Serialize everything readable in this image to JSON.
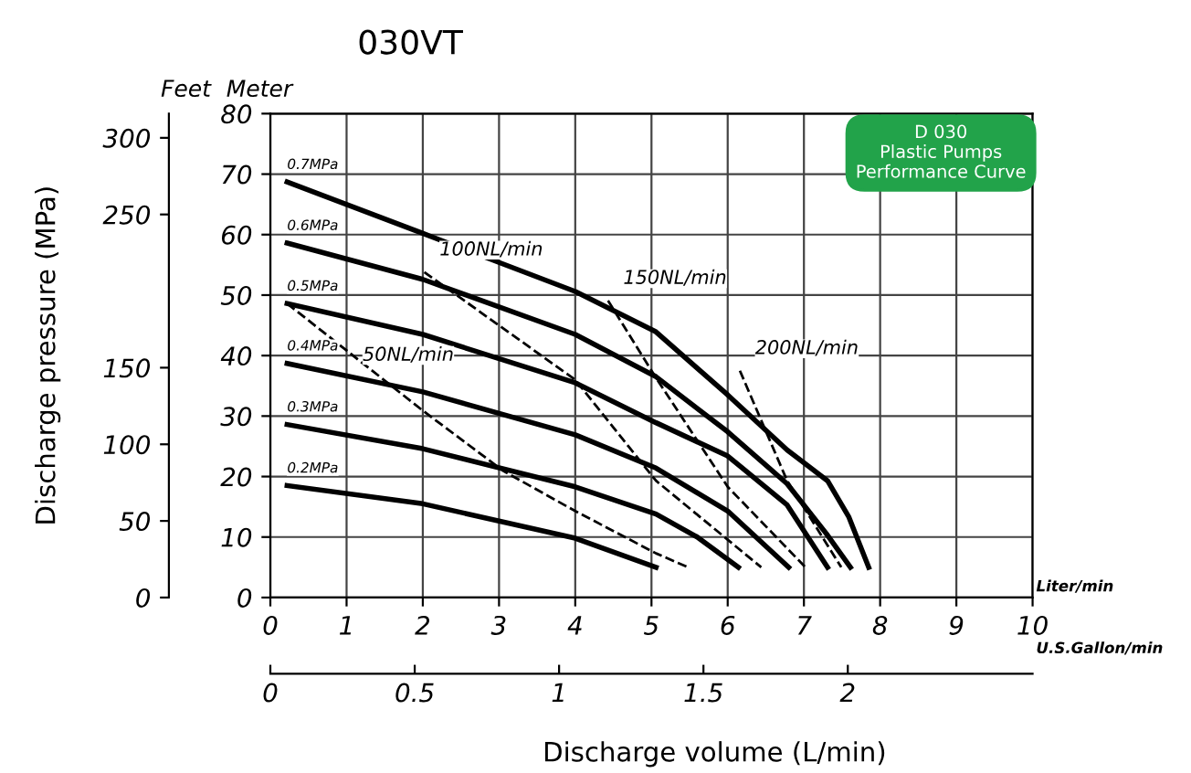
{
  "chart_data": {
    "type": "line",
    "title": "030VT",
    "xlabel": "Discharge volume (L/min)",
    "x2label": "U.S.Gallon/min",
    "annotations": [
      "Meter",
      "Liter/min",
      "D 030\nPlastic Pumps\nPerformance Curve",
      "Feet",
      "Discharge pressure (MPa)"
    ],
    "xlim": [
      0,
      10
    ],
    "xticks": [
      0,
      1,
      2,
      3,
      4,
      5,
      6,
      7,
      8,
      9,
      10
    ],
    "ylim": [
      0,
      80
    ],
    "yticks": [
      0,
      10,
      20,
      30,
      40,
      50,
      60,
      70,
      80
    ],
    "x2lim": [
      0,
      2.64
    ],
    "x2ticks": [
      0,
      0.5,
      1,
      1.5,
      2
    ],
    "y2lim": [
      0,
      315.8
    ],
    "y2ticks": [
      0,
      50,
      100,
      150,
      250,
      300
    ],
    "grid": true,
    "legend": false,
    "marker": "none",
    "series": [
      {
        "name": "0.7MPa",
        "color": "#000000",
        "line_style": "solid",
        "x": [
          0.22,
          2,
          4,
          5.05,
          6,
          6.78,
          7.31,
          7.59,
          7.85
        ],
        "values": [
          68.7,
          60.2,
          50.6,
          44,
          33.5,
          24.4,
          19.3,
          13.3,
          5
        ]
      },
      {
        "name": "0.6MPa",
        "color": "#000000",
        "line_style": "solid",
        "x": [
          0.22,
          2,
          4,
          5.06,
          6,
          6.78,
          7.31,
          7.61
        ],
        "values": [
          58.6,
          52.6,
          43.5,
          36.5,
          27.4,
          18.8,
          10.3,
          5
        ]
      },
      {
        "name": "0.5MPa",
        "color": "#000000",
        "line_style": "solid",
        "x": [
          0.22,
          2,
          4,
          5.06,
          6,
          6.78,
          7.31
        ],
        "values": [
          48.6,
          43.5,
          35.5,
          28.9,
          23.4,
          15.3,
          5
        ]
      },
      {
        "name": "0.4MPa",
        "color": "#000000",
        "line_style": "solid",
        "x": [
          0.22,
          2,
          4,
          5.06,
          6,
          6.8
        ],
        "values": [
          38.7,
          34,
          26.9,
          21.4,
          14.3,
          5
        ]
      },
      {
        "name": "0.3MPa",
        "color": "#000000",
        "line_style": "solid",
        "x": [
          0.22,
          2,
          4,
          5.06,
          5.6,
          6.14
        ],
        "values": [
          28.6,
          24.6,
          18.3,
          13.8,
          10,
          5
        ]
      },
      {
        "name": "0.2MPa",
        "color": "#000000",
        "line_style": "solid",
        "x": [
          0.22,
          2,
          4,
          5.06
        ],
        "values": [
          18.5,
          15.5,
          9.8,
          5
        ]
      },
      {
        "name": "50NL/min",
        "color": "#000000",
        "line_style": "dashed",
        "x": [
          0.22,
          2,
          3.06,
          4,
          5.06,
          5.48
        ],
        "values": [
          48.6,
          30.9,
          20.9,
          14.3,
          7.3,
          5
        ]
      },
      {
        "name": "100NL/min",
        "color": "#000000",
        "line_style": "dashed",
        "x": [
          2.02,
          4,
          5.06,
          6.44
        ],
        "values": [
          53.8,
          36,
          19.3,
          5
        ]
      },
      {
        "name": "150NL/min",
        "color": "#000000",
        "line_style": "dashed",
        "x": [
          4.43,
          5.05,
          6,
          7.02
        ],
        "values": [
          49.1,
          36.5,
          18.3,
          5
        ]
      },
      {
        "name": "200NL/min",
        "color": "#000000",
        "line_style": "dashed",
        "x": [
          6.16,
          6.78,
          7.49
        ],
        "values": [
          37.5,
          19.3,
          5
        ]
      }
    ]
  }
}
